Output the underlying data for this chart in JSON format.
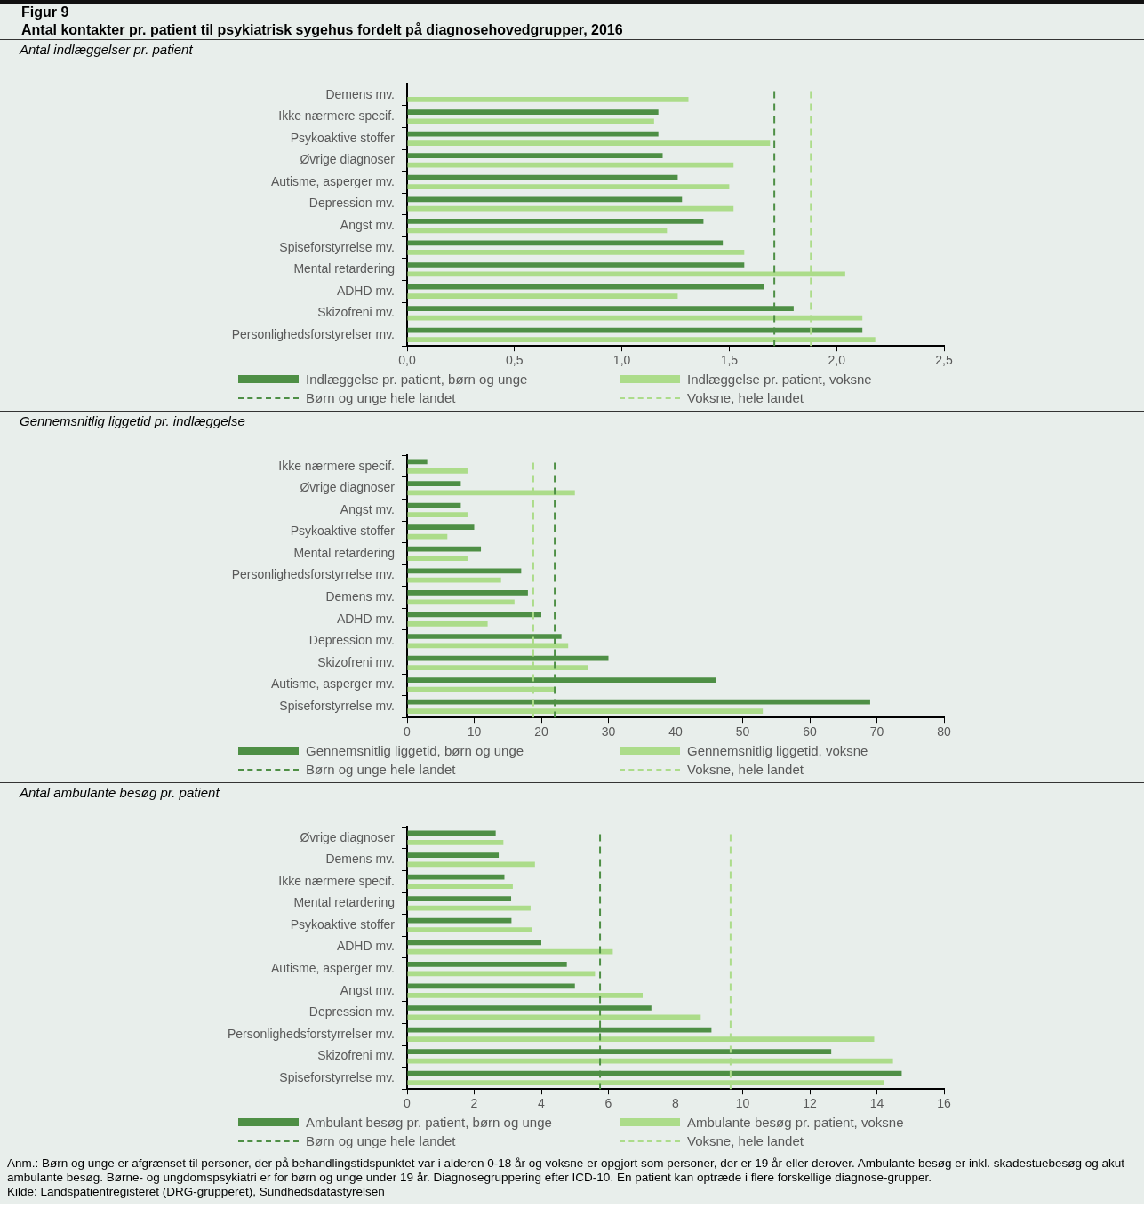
{
  "chart_data": [
    {
      "type": "bar",
      "orientation": "horizontal",
      "title": "Antal indlæggelser pr. patient",
      "annotations": [
        "Figur 9",
        "Antal kontakter pr. patient til psykiatrisk sygehus fordelt på diagnosehovedgrupper, 2016"
      ],
      "categories": [
        "Demens mv.",
        "Ikke nærmere specif.",
        "Psykoaktive stoffer",
        "Øvrige diagnoser",
        "Autisme, asperger mv.",
        "Depression mv.",
        "Angst mv.",
        "Spiseforstyrrelse mv.",
        "Mental retardering",
        "ADHD mv.",
        "Skizofreni mv.",
        "Personlighedsforstyrelser mv."
      ],
      "series": [
        {
          "name": "Indlæggelse pr. patient, børn og unge",
          "color": "#4e8f45",
          "values": [
            null,
            1.17,
            1.17,
            1.19,
            1.26,
            1.28,
            1.38,
            1.47,
            1.57,
            1.66,
            1.8,
            2.12
          ]
        },
        {
          "name": "Indlæggelse pr. patient, voksne",
          "color": "#acdc8a",
          "values": [
            1.31,
            1.15,
            1.69,
            1.52,
            1.5,
            1.52,
            1.21,
            1.57,
            2.04,
            1.26,
            2.12,
            2.18
          ]
        }
      ],
      "xlim": [
        0,
        2.5
      ],
      "xticks": [
        {
          "value": 0,
          "label": "0,0"
        },
        {
          "value": 0.5,
          "label": "0,5"
        },
        {
          "value": 1,
          "label": "1,0"
        },
        {
          "value": 1.5,
          "label": "1,5"
        },
        {
          "value": 2,
          "label": "2,0"
        },
        {
          "value": 2.5,
          "label": "2,5"
        }
      ],
      "ref_lines": [
        {
          "axis": "x",
          "value": 1.71,
          "label": "Børn og unge hele landet",
          "color": "#4e8f45",
          "line_style": "dashed"
        },
        {
          "axis": "x",
          "value": 1.88,
          "label": "Voksne, hele landet",
          "color": "#acdc8a",
          "line_style": "dashed"
        }
      ],
      "legend": "bottom"
    },
    {
      "type": "bar",
      "orientation": "horizontal",
      "title": "Gennemsnitlig liggetid pr. indlæggelse",
      "categories": [
        "Ikke nærmere specif.",
        "Øvrige diagnoser",
        "Angst mv.",
        "Psykoaktive stoffer",
        "Mental retardering",
        "Personlighedsforstyrrelse mv.",
        "Demens mv.",
        "ADHD mv.",
        "Depression mv.",
        "Skizofreni mv.",
        "Autisme, asperger mv.",
        "Spiseforstyrrelse mv."
      ],
      "series": [
        {
          "name": "Gennemsnitlig liggetid, børn og unge",
          "color": "#4e8f45",
          "values": [
            3,
            8,
            8,
            10,
            11,
            17,
            18,
            20,
            23,
            30,
            46,
            69
          ]
        },
        {
          "name": "Gennemsnitlig liggetid, voksne",
          "color": "#acdc8a",
          "values": [
            9,
            25,
            9,
            6,
            9,
            14,
            16,
            12,
            24,
            27,
            22,
            53
          ]
        }
      ],
      "xlim": [
        0,
        80
      ],
      "xticks": [
        0,
        10,
        20,
        30,
        40,
        50,
        60,
        70,
        80
      ],
      "ref_lines": [
        {
          "axis": "x",
          "value": 22,
          "label": "Børn og unge hele landet",
          "color": "#4e8f45",
          "line_style": "dashed"
        },
        {
          "axis": "x",
          "value": 18.8,
          "label": "Voksne, hele landet",
          "color": "#acdc8a",
          "line_style": "dashed"
        }
      ],
      "legend": "bottom"
    },
    {
      "type": "bar",
      "orientation": "horizontal",
      "title": "Antal ambulante besøg pr. patient",
      "annotations": [
        "Anm.: Børn og unge er afgrænset til personer, der på behandlingstidspunktet var i alderen 0-18 år og voksne er opgjort som personer, der er 19 år eller derover. Ambulante besøg er inkl. skadestuebesøg og akut ambulante besøg. Børne- og ungdomspsykiatri er for børn og unge under 19 år. Diagnosegruppering efter ICD-10. En patient kan optræde i flere forskellige diagnose-grupper.",
        "Kilde: Landspatientregisteret (DRG-grupperet), Sundhedsdatastyrelsen"
      ],
      "categories": [
        "Øvrige diagnoser",
        "Demens mv.",
        "Ikke nærmere specif.",
        "Mental retardering",
        "Psykoaktive stoffer",
        "ADHD mv.",
        "Autisme, asperger mv.",
        "Angst mv.",
        "Depression mv.",
        "Personlighedsforstyrrelser mv.",
        "Skizofreni mv.",
        "Spiseforstyrrelse mv."
      ],
      "series": [
        {
          "name": "Ambulant besøg pr. patient, børn og unge",
          "color": "#4e8f45",
          "values": [
            2.64,
            2.73,
            2.9,
            3.1,
            3.11,
            4.0,
            4.76,
            5.0,
            7.28,
            9.07,
            12.64,
            14.74
          ]
        },
        {
          "name": "Ambulante besøg pr. patient, voksne",
          "color": "#acdc8a",
          "values": [
            2.87,
            3.81,
            3.15,
            3.68,
            3.73,
            6.13,
            5.6,
            7.02,
            8.75,
            13.92,
            14.48,
            14.22
          ]
        }
      ],
      "xlim": [
        0,
        16
      ],
      "xticks": [
        0,
        2,
        4,
        6,
        8,
        10,
        12,
        14,
        16
      ],
      "ref_lines": [
        {
          "axis": "x",
          "value": 5.75,
          "label": "Børn og unge hele landet",
          "color": "#4e8f45",
          "line_style": "dashed"
        },
        {
          "axis": "x",
          "value": 9.64,
          "label": "Voksne, hele landet",
          "color": "#acdc8a",
          "line_style": "dashed"
        }
      ],
      "legend": "bottom"
    }
  ]
}
